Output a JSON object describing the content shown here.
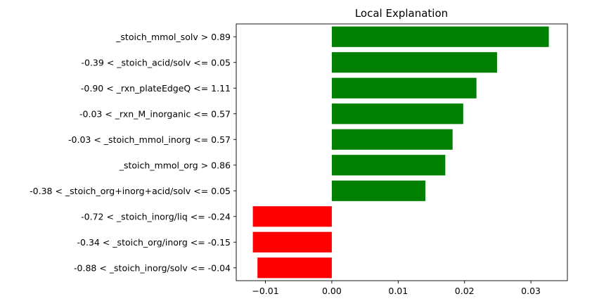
{
  "chart_data": {
    "type": "bar",
    "orientation": "horizontal",
    "title": "Local Explanation",
    "xlabel": "",
    "ylabel": "",
    "xlim": [
      -0.0144,
      0.0355
    ],
    "x_ticks": [
      -0.01,
      0.0,
      0.01,
      0.02,
      0.03
    ],
    "x_tick_labels": [
      "−0.01",
      "0.00",
      "0.01",
      "0.02",
      "0.03"
    ],
    "grid": false,
    "legend": "none",
    "categories": [
      "_stoich_mmol_solv > 0.89",
      "-0.39 < _stoich_acid/solv <= 0.05",
      "-0.90 < _rxn_plateEdgeQ <= 1.11",
      "-0.03 < _rxn_M_inorganic <= 0.57",
      "-0.03 < _stoich_mmol_inorg <= 0.57",
      "_stoich_mmol_org > 0.86",
      "-0.38 < _stoich_org+inorg+acid/solv <= 0.05",
      "-0.72 < _stoich_inorg/liq <= -0.24",
      "-0.34 < _stoich_org/inorg <= -0.15",
      "-0.88 < _stoich_inorg/solv <= -0.04"
    ],
    "values": [
      0.0327,
      0.0249,
      0.0218,
      0.0198,
      0.0182,
      0.0171,
      0.0141,
      -0.0119,
      -0.0119,
      -0.0112
    ],
    "colors": {
      "positive": "#008000",
      "negative": "#ff0000"
    }
  }
}
